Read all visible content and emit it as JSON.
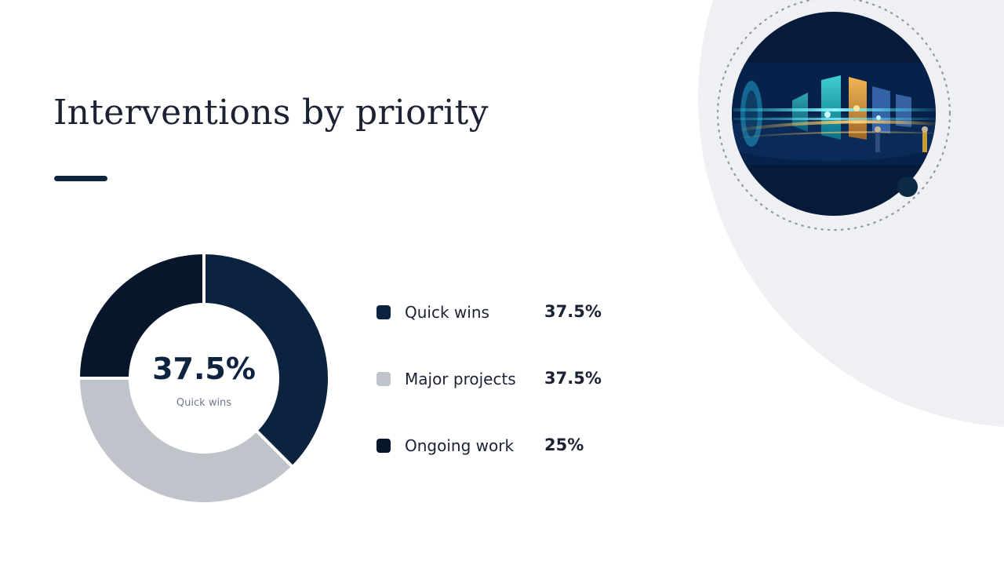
{
  "slide": {
    "title": "Interventions by priority"
  },
  "colors": {
    "accent": "#0f2640",
    "background_shape": "#eef0f3"
  },
  "hero_image": {
    "icon": "digital-corridor-illustration"
  },
  "chart_data": {
    "type": "pie",
    "categories": [
      "Quick wins",
      "Major projects",
      "Ongoing work"
    ],
    "values": [
      37.5,
      37.5,
      25
    ],
    "value_labels": [
      "37.5%",
      "37.5%",
      "25%"
    ],
    "colors": [
      "#0c2340",
      "#bfc4cb",
      "#07162b"
    ],
    "center": {
      "value": "37.5%",
      "label": "Quick wins"
    },
    "legend_placement": "right",
    "donut": true
  }
}
